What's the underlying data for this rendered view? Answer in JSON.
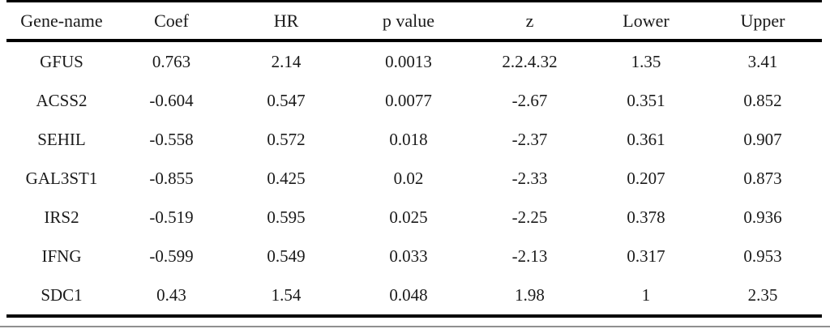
{
  "table": {
    "columns": [
      "Gene-name",
      "Coef",
      "HR",
      "p value",
      "z",
      "Lower",
      "Upper"
    ],
    "rows": [
      [
        "GFUS",
        "0.763",
        "2.14",
        "0.0013",
        "2.2.4.32",
        "1.35",
        "3.41"
      ],
      [
        "ACSS2",
        "-0.604",
        "0.547",
        "0.0077",
        "-2.67",
        "0.351",
        "0.852"
      ],
      [
        "SEHIL",
        "-0.558",
        "0.572",
        "0.018",
        "-2.37",
        "0.361",
        "0.907"
      ],
      [
        "GAL3ST1",
        "-0.855",
        "0.425",
        "0.02",
        "-2.33",
        "0.207",
        "0.873"
      ],
      [
        "IRS2",
        "-0.519",
        "0.595",
        "0.025",
        "-2.25",
        "0.378",
        "0.936"
      ],
      [
        "IFNG",
        "-0.599",
        "0.549",
        "0.033",
        "-2.13",
        "0.317",
        "0.953"
      ],
      [
        "SDC1",
        "0.43",
        "1.54",
        "0.048",
        "1.98",
        "1",
        "2.35"
      ]
    ]
  },
  "chart_data": {
    "type": "table",
    "columns": [
      "Gene-name",
      "Coef",
      "HR",
      "p value",
      "z",
      "Lower",
      "Upper"
    ],
    "rows": [
      [
        "GFUS",
        "0.763",
        "2.14",
        "0.0013",
        "2.2.4.32",
        "1.35",
        "3.41"
      ],
      [
        "ACSS2",
        "-0.604",
        "0.547",
        "0.0077",
        "-2.67",
        "0.351",
        "0.852"
      ],
      [
        "SEHIL",
        "-0.558",
        "0.572",
        "0.018",
        "-2.37",
        "0.361",
        "0.907"
      ],
      [
        "GAL3ST1",
        "-0.855",
        "0.425",
        "0.02",
        "-2.33",
        "0.207",
        "0.873"
      ],
      [
        "IRS2",
        "-0.519",
        "0.595",
        "0.025",
        "-2.25",
        "0.378",
        "0.936"
      ],
      [
        "IFNG",
        "-0.599",
        "0.549",
        "0.033",
        "-2.13",
        "0.317",
        "0.953"
      ],
      [
        "SDC1",
        "0.43",
        "1.54",
        "0.048",
        "1.98",
        "1",
        "2.35"
      ]
    ]
  },
  "colors": {
    "rule": "#000000",
    "text": "#1a1a1a",
    "bottom_hairline": "#8f8f8f",
    "background": "#ffffff"
  }
}
